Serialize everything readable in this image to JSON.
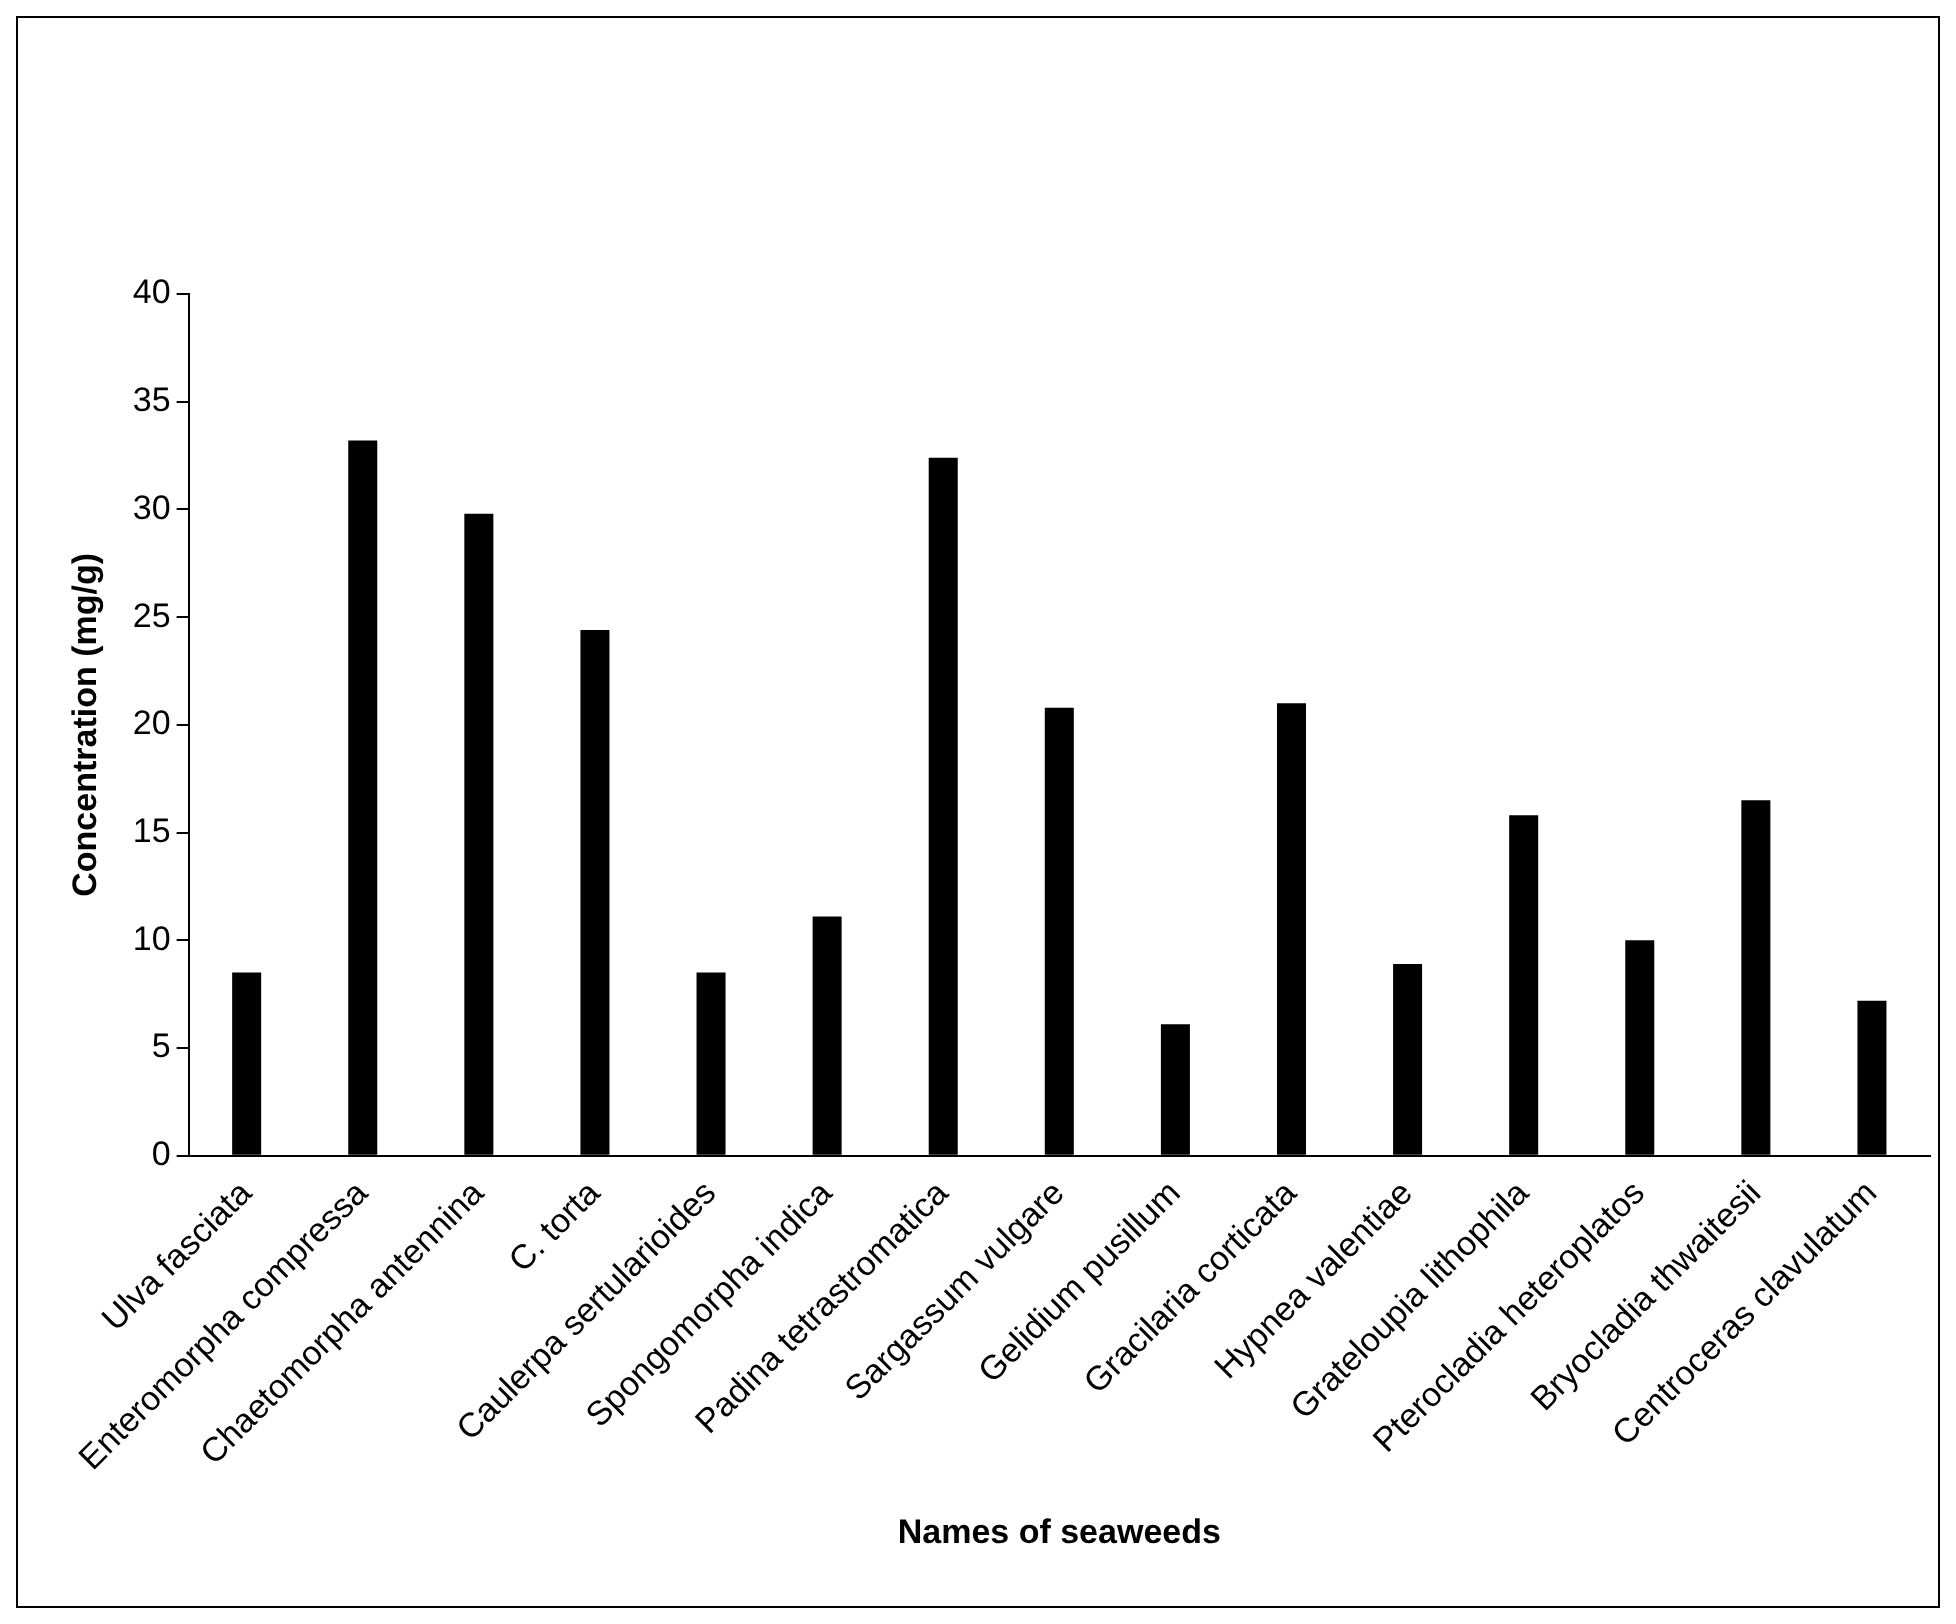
{
  "chart_data": {
    "type": "bar",
    "xlabel": "Names of seaweeds",
    "ylabel": "Concentration (mg/g)",
    "categories": [
      "Ulva fasciata",
      "Enteromorpha compressa",
      "Chaetomorpha antennina",
      "C. torta",
      "Caulerpa sertularioides",
      "Spongomorpha indica",
      "Padina tetrastromatica",
      "Sargassum vulgare",
      "Gelidium pusillum",
      "Gracilaria corticata",
      "Hypnea valentiae",
      "Grateloupia lithophila",
      "Pterocladia heteroplatos",
      "Bryocladia thwaitesii",
      "Centroceras clavulatum"
    ],
    "values": [
      8.5,
      33.2,
      29.8,
      24.4,
      8.5,
      11.1,
      32.4,
      20.8,
      6.1,
      21.0,
      8.9,
      15.8,
      10.0,
      16.5,
      7.2
    ],
    "color": "#000000",
    "ylim": [
      0,
      40
    ],
    "yticks": [
      0,
      5,
      10,
      15,
      20,
      25,
      30,
      35,
      40
    ],
    "grid": false,
    "legend": false
  }
}
